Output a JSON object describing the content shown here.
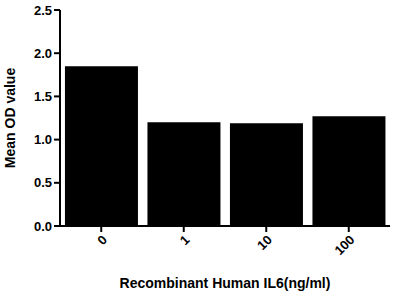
{
  "chart_data": {
    "type": "bar",
    "categories": [
      "0",
      "1",
      "10",
      "100"
    ],
    "values": [
      1.85,
      1.2,
      1.19,
      1.27
    ],
    "color": "#000000",
    "x_label": "Recombinant Human IL6(ng/ml)",
    "y_label": "Mean OD value",
    "ylim": [
      0,
      2.5
    ],
    "yticks": [
      {
        "value": 0,
        "label": "0.0"
      },
      {
        "value": 0.5,
        "label": "0.5"
      },
      {
        "value": 1,
        "label": "1.0"
      },
      {
        "value": 1.5,
        "label": "1.5"
      },
      {
        "value": 2,
        "label": "2.0"
      },
      {
        "value": 2.5,
        "label": "2.5"
      }
    ],
    "grid": false
  }
}
